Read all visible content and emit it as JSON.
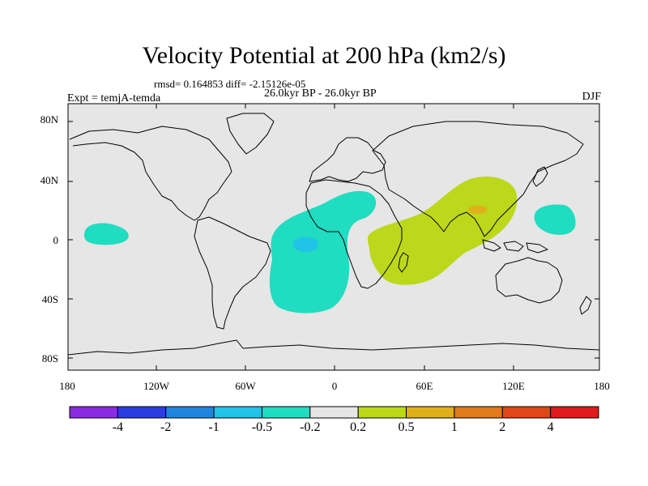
{
  "title": "Velocity Potential at 200 hPa (km2/s)",
  "stats_line": "rmsd= 0.164853 diff= -2.15126e-05",
  "period_line": "26.0kyr BP - 26.0kyr BP",
  "experiment_label": "Expt = temjA-temda",
  "season_label": "DJF",
  "y_ticks": [
    "80N",
    "40N",
    "0",
    "40S",
    "80S"
  ],
  "x_ticks": [
    "180",
    "120W",
    "60W",
    "0",
    "60E",
    "120E",
    "180"
  ],
  "colorbar": {
    "labels": [
      "-4",
      "-2",
      "-1",
      "-0.5",
      "-0.2",
      "0.2",
      "0.5",
      "1",
      "2",
      "4"
    ],
    "colors": [
      "#8a2be2",
      "#2b3de0",
      "#1f86e0",
      "#20c4e6",
      "#20dcc0",
      "#e6e6e6",
      "#bcd81a",
      "#e0b01a",
      "#e07a1a",
      "#e0461a",
      "#e01a1a"
    ]
  },
  "colors": {
    "map_background": "#e6e6e6",
    "neg_0_2_to_0_5": "#20dcc0",
    "neg_0_5_to_1": "#20c4e6",
    "pos_0_2_to_0_5": "#bcd81a",
    "pos_0_5_to_1": "#e0b01a"
  }
}
